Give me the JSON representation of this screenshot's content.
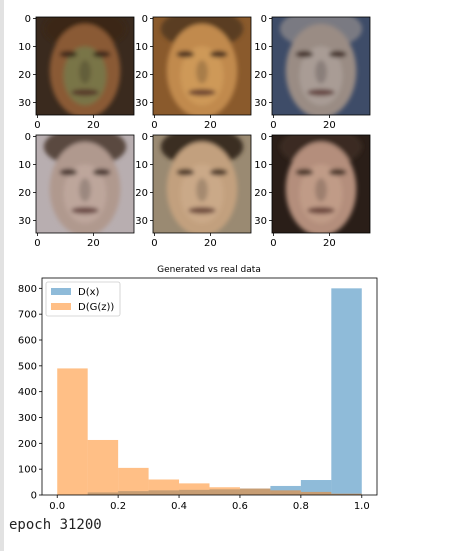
{
  "chart_data": [
    {
      "type": "image-grid",
      "rows": 2,
      "cols": 3,
      "image_size": 35,
      "x_ticks": [
        "0",
        "20"
      ],
      "y_ticks": [
        "0",
        "10",
        "20",
        "30"
      ],
      "faces": [
        {
          "skin": "#8a5a35",
          "bg": "#3a2a1e",
          "hair": "#3a2616",
          "tint": "#6b8a55"
        },
        {
          "skin": "#c18a4e",
          "bg": "#8a5a2c",
          "hair": "#5a3d22",
          "tint": "#d9a562"
        },
        {
          "skin": "#9a8c84",
          "bg": "#3e4c68",
          "hair": "#7a7a82",
          "tint": "#b7aaa4"
        },
        {
          "skin": "#b0998e",
          "bg": "#b8aeb0",
          "hair": "#5a4840",
          "tint": "#c9b1a6"
        },
        {
          "skin": "#c2a07e",
          "bg": "#9a8a72",
          "hair": "#3a2e24",
          "tint": "#d1b090"
        },
        {
          "skin": "#b48e7c",
          "bg": "#2a1e18",
          "hair": "#3a2a20",
          "tint": "#caa590"
        }
      ]
    },
    {
      "type": "histogram",
      "title": "Generated vs real data",
      "xlim": [
        -0.05,
        1.05
      ],
      "ylim": [
        0,
        840
      ],
      "x_ticks": [
        0.0,
        0.2,
        0.4,
        0.6,
        0.8,
        1.0
      ],
      "y_ticks": [
        0,
        100,
        200,
        300,
        400,
        500,
        600,
        700,
        800
      ],
      "legend_position": "top-left",
      "series": [
        {
          "name": "D(x)",
          "color": "#1f77b4",
          "alpha": 0.5,
          "bins": [
            [
              0.0,
              0.1
            ],
            [
              0.1,
              0.2
            ],
            [
              0.2,
              0.3
            ],
            [
              0.3,
              0.4
            ],
            [
              0.4,
              0.5
            ],
            [
              0.5,
              0.6
            ],
            [
              0.6,
              0.7
            ],
            [
              0.7,
              0.8
            ],
            [
              0.8,
              0.9
            ],
            [
              0.9,
              1.0
            ]
          ],
          "values": [
            2,
            10,
            15,
            18,
            20,
            22,
            25,
            35,
            58,
            800
          ]
        },
        {
          "name": "D(G(z))",
          "color": "#ff7f0e",
          "alpha": 0.5,
          "bins": [
            [
              0.0,
              0.1
            ],
            [
              0.1,
              0.2
            ],
            [
              0.2,
              0.3
            ],
            [
              0.3,
              0.4
            ],
            [
              0.4,
              0.5
            ],
            [
              0.5,
              0.6
            ],
            [
              0.6,
              0.7
            ],
            [
              0.7,
              0.8
            ],
            [
              0.8,
              0.9
            ],
            [
              0.9,
              1.0
            ]
          ],
          "values": [
            490,
            213,
            105,
            60,
            45,
            30,
            25,
            18,
            12,
            5
          ]
        }
      ]
    }
  ],
  "log": {
    "epoch_text": "epoch 31200"
  }
}
